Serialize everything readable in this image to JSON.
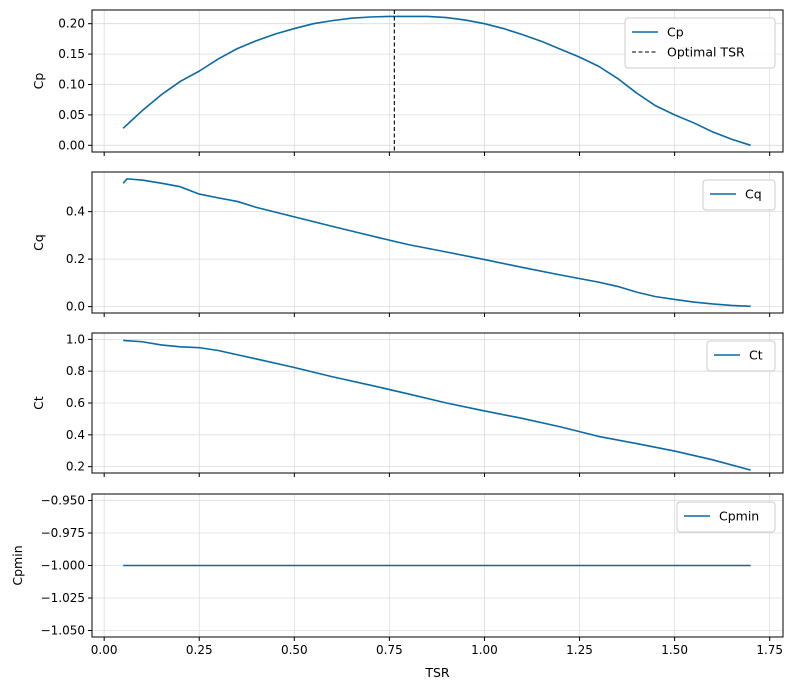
{
  "chart_data": [
    {
      "type": "line",
      "ylabel": "Cp",
      "xlabel": "",
      "xlim": [
        -0.032,
        1.785
      ],
      "ylim": [
        -0.011,
        0.2225
      ],
      "xticks": [
        0.0,
        0.25,
        0.5,
        0.75,
        1.0,
        1.25,
        1.5,
        1.75
      ],
      "show_xtick_labels": false,
      "yticks": [
        0.0,
        0.05,
        0.1,
        0.15,
        0.2
      ],
      "ytick_labels": [
        "0.00",
        "0.05",
        "0.10",
        "0.15",
        "0.20"
      ],
      "grid": true,
      "legend_position": "top-right",
      "series": [
        {
          "name": "Cp",
          "color": "#0b6aa3",
          "x": [
            0.05,
            0.1,
            0.15,
            0.2,
            0.25,
            0.3,
            0.35,
            0.4,
            0.45,
            0.5,
            0.55,
            0.6,
            0.65,
            0.7,
            0.75,
            0.8,
            0.85,
            0.9,
            0.95,
            1.0,
            1.05,
            1.1,
            1.15,
            1.2,
            1.25,
            1.3,
            1.35,
            1.4,
            1.45,
            1.5,
            1.55,
            1.6,
            1.65,
            1.7
          ],
          "values": [
            0.028,
            0.057,
            0.083,
            0.105,
            0.122,
            0.142,
            0.159,
            0.172,
            0.183,
            0.192,
            0.2,
            0.205,
            0.209,
            0.211,
            0.212,
            0.212,
            0.212,
            0.21,
            0.206,
            0.2,
            0.192,
            0.182,
            0.171,
            0.158,
            0.145,
            0.13,
            0.11,
            0.086,
            0.065,
            0.05,
            0.037,
            0.022,
            0.01,
            0.0
          ]
        }
      ],
      "vlines": [
        {
          "name": "Optimal TSR",
          "x": 0.763,
          "color": "#000000",
          "style": "dashed"
        }
      ]
    },
    {
      "type": "line",
      "ylabel": "Cq",
      "xlabel": "",
      "xlim": [
        -0.032,
        1.785
      ],
      "ylim": [
        -0.027,
        0.567
      ],
      "xticks": [
        0.0,
        0.25,
        0.5,
        0.75,
        1.0,
        1.25,
        1.5,
        1.75
      ],
      "show_xtick_labels": false,
      "yticks": [
        0.0,
        0.2,
        0.4
      ],
      "ytick_labels": [
        "0.0",
        "0.2",
        "0.4"
      ],
      "grid": true,
      "legend_position": "top-right",
      "series": [
        {
          "name": "Cq",
          "color": "#0b6aa3",
          "x": [
            0.05,
            0.06,
            0.1,
            0.15,
            0.2,
            0.25,
            0.3,
            0.35,
            0.4,
            0.5,
            0.6,
            0.7,
            0.8,
            0.9,
            1.0,
            1.1,
            1.2,
            1.3,
            1.35,
            1.4,
            1.45,
            1.5,
            1.55,
            1.6,
            1.65,
            1.7
          ],
          "values": [
            0.52,
            0.538,
            0.533,
            0.52,
            0.505,
            0.474,
            0.458,
            0.443,
            0.418,
            0.378,
            0.338,
            0.299,
            0.261,
            0.23,
            0.198,
            0.165,
            0.133,
            0.103,
            0.085,
            0.061,
            0.042,
            0.03,
            0.019,
            0.011,
            0.005,
            0.001
          ]
        }
      ]
    },
    {
      "type": "line",
      "ylabel": "Ct",
      "xlabel": "",
      "xlim": [
        -0.032,
        1.785
      ],
      "ylim": [
        0.16,
        1.04
      ],
      "xticks": [
        0.0,
        0.25,
        0.5,
        0.75,
        1.0,
        1.25,
        1.5,
        1.75
      ],
      "show_xtick_labels": false,
      "yticks": [
        0.2,
        0.4,
        0.6,
        0.8,
        1.0
      ],
      "ytick_labels": [
        "0.2",
        "0.4",
        "0.6",
        "0.8",
        "1.0"
      ],
      "grid": true,
      "legend_position": "top-right",
      "series": [
        {
          "name": "Ct",
          "color": "#0b6aa3",
          "x": [
            0.05,
            0.1,
            0.15,
            0.2,
            0.25,
            0.3,
            0.4,
            0.5,
            0.6,
            0.7,
            0.8,
            0.9,
            1.0,
            1.1,
            1.2,
            1.3,
            1.4,
            1.5,
            1.6,
            1.7
          ],
          "values": [
            0.993,
            0.985,
            0.965,
            0.953,
            0.948,
            0.93,
            0.877,
            0.823,
            0.765,
            0.712,
            0.657,
            0.6,
            0.55,
            0.503,
            0.45,
            0.39,
            0.345,
            0.298,
            0.243,
            0.178
          ]
        }
      ]
    },
    {
      "type": "line",
      "ylabel": "Cpmin",
      "xlabel": "TSR",
      "xlim": [
        -0.032,
        1.785
      ],
      "ylim": [
        -1.055,
        -0.945
      ],
      "xticks": [
        0.0,
        0.25,
        0.5,
        0.75,
        1.0,
        1.25,
        1.5,
        1.75
      ],
      "xtick_labels": [
        "0.00",
        "0.25",
        "0.50",
        "0.75",
        "1.00",
        "1.25",
        "1.50",
        "1.75"
      ],
      "show_xtick_labels": true,
      "yticks": [
        -1.05,
        -1.025,
        -1.0,
        -0.975,
        -0.95
      ],
      "ytick_labels": [
        "−1.050",
        "−1.025",
        "−1.000",
        "−0.975",
        "−0.950"
      ],
      "grid": true,
      "legend_position": "top-right",
      "series": [
        {
          "name": "Cpmin",
          "color": "#0b6aa3",
          "x": [
            0.05,
            1.7
          ],
          "values": [
            -1.0,
            -1.0
          ]
        }
      ]
    }
  ]
}
